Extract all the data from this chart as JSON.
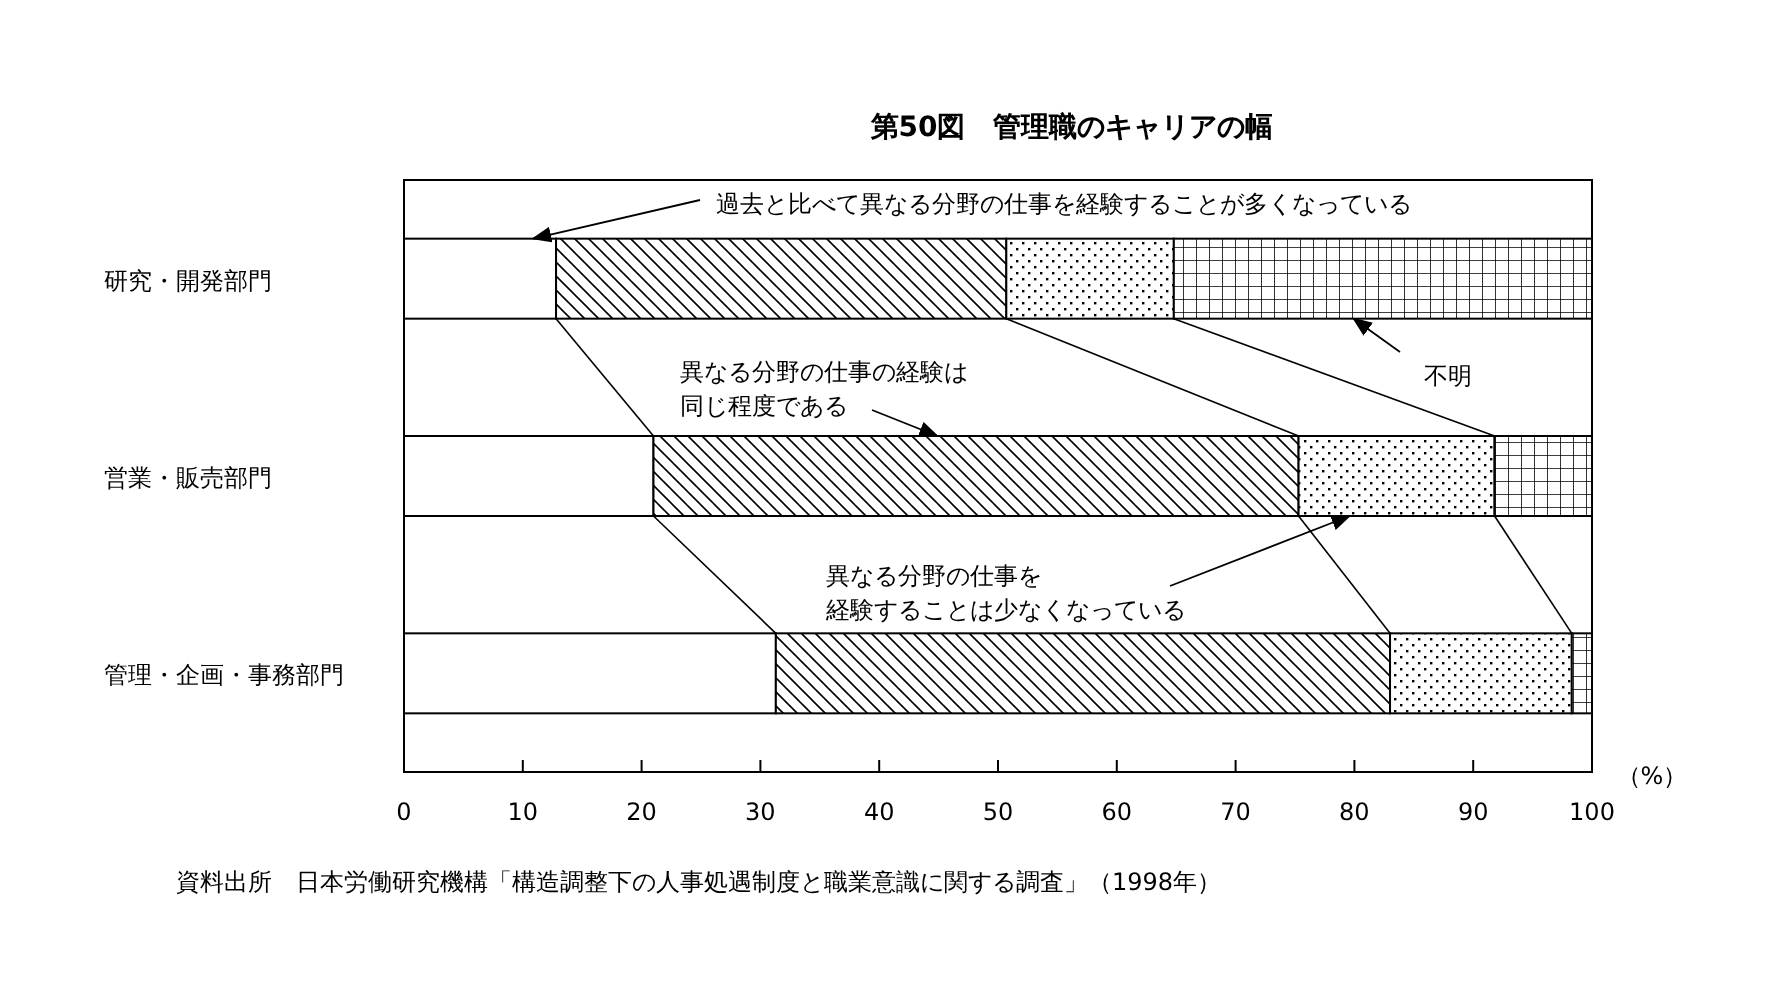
{
  "chart_data": {
    "type": "bar",
    "orientation": "horizontal",
    "stacked": true,
    "title": "第50図　管理職のキャリアの幅",
    "xlabel": "（%）",
    "categories": [
      "研究・開発部門",
      "営業・販売部門",
      "管理・企画・事務部門"
    ],
    "series": [
      {
        "name": "過去と比べて異なる分野の仕事を経験することが多くなっている",
        "color": "#ffffff",
        "values": [
          12.8,
          21.0,
          31.3
        ]
      },
      {
        "name": "異なる分野の仕事の経験は同じ程度である",
        "color": "#000000",
        "values": [
          37.9,
          54.3,
          51.7
        ]
      },
      {
        "name": "異なる分野の仕事を経験することは少なくなっている",
        "color": "#000000",
        "values": [
          14.1,
          16.5,
          15.3
        ]
      },
      {
        "name": "不明",
        "color": "#000000",
        "values": [
          35.2,
          8.2,
          1.7
        ]
      }
    ],
    "xlim": [
      0,
      100
    ],
    "xticks": [
      0,
      10,
      20,
      30,
      40,
      50,
      60,
      70,
      80,
      90,
      100
    ],
    "annotations": [
      "資料出所　日本労働研究機構「構造調整下の人事処遇制度と職業意識に関する調査」（1998年）"
    ]
  }
}
